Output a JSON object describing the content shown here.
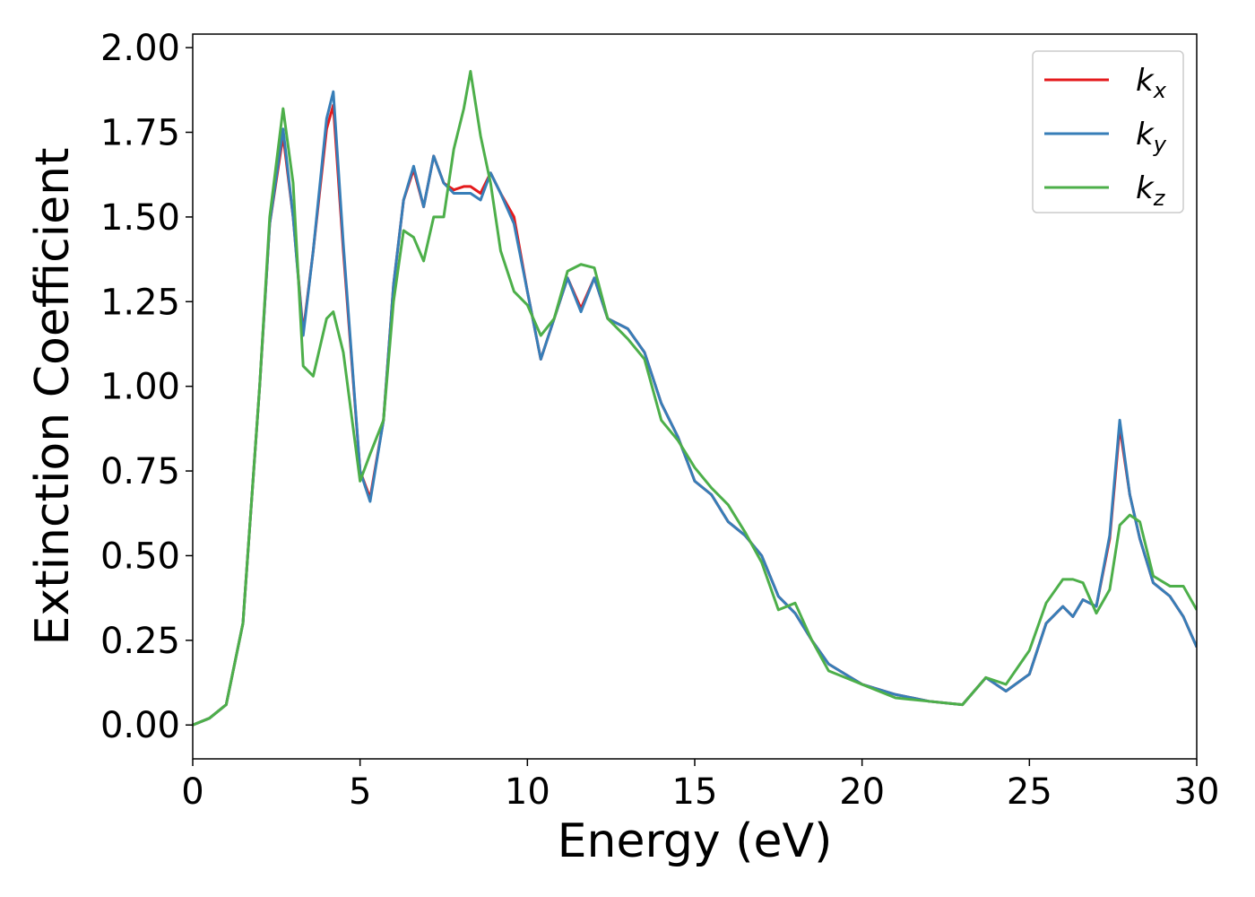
{
  "chart_data": {
    "type": "line",
    "xlabel": "Energy (eV)",
    "ylabel": "Extinction Coefficient",
    "x": [
      0,
      0.5,
      1,
      1.5,
      2,
      2.3,
      2.7,
      3,
      3.3,
      3.6,
      4,
      4.2,
      4.5,
      5,
      5.3,
      5.7,
      6,
      6.3,
      6.6,
      6.9,
      7.2,
      7.5,
      7.8,
      8.1,
      8.3,
      8.6,
      8.9,
      9.2,
      9.6,
      10,
      10.4,
      10.8,
      11.2,
      11.6,
      12,
      12.4,
      13,
      13.5,
      14,
      14.5,
      15,
      15.5,
      16,
      16.5,
      17,
      17.5,
      18,
      18.5,
      19,
      19.5,
      20,
      21,
      22,
      23,
      23.7,
      24.3,
      25,
      25.5,
      26,
      26.3,
      26.6,
      27,
      27.4,
      27.7,
      28,
      28.3,
      28.7,
      29.2,
      29.6,
      30
    ],
    "series": [
      {
        "name": "kx",
        "color": "#e41a1c",
        "values": [
          0,
          0.02,
          0.06,
          0.3,
          1.0,
          1.48,
          1.74,
          1.5,
          1.16,
          1.4,
          1.76,
          1.83,
          1.4,
          0.75,
          0.67,
          0.9,
          1.3,
          1.55,
          1.64,
          1.53,
          1.68,
          1.6,
          1.58,
          1.59,
          1.59,
          1.57,
          1.63,
          1.57,
          1.5,
          1.28,
          1.08,
          1.2,
          1.32,
          1.23,
          1.32,
          1.2,
          1.17,
          1.1,
          0.95,
          0.85,
          0.72,
          0.68,
          0.6,
          0.56,
          0.5,
          0.38,
          0.33,
          0.25,
          0.18,
          0.15,
          0.12,
          0.09,
          0.07,
          0.06,
          0.14,
          0.1,
          0.15,
          0.3,
          0.35,
          0.32,
          0.37,
          0.35,
          0.55,
          0.88,
          0.68,
          0.55,
          0.42,
          0.38,
          0.32,
          0.23
        ]
      },
      {
        "name": "ky",
        "color": "#377eb8",
        "values": [
          0,
          0.02,
          0.06,
          0.3,
          1.0,
          1.48,
          1.76,
          1.5,
          1.15,
          1.4,
          1.79,
          1.87,
          1.42,
          0.75,
          0.66,
          0.9,
          1.3,
          1.55,
          1.65,
          1.53,
          1.68,
          1.6,
          1.57,
          1.57,
          1.57,
          1.55,
          1.63,
          1.57,
          1.48,
          1.28,
          1.08,
          1.2,
          1.32,
          1.22,
          1.32,
          1.2,
          1.17,
          1.1,
          0.95,
          0.85,
          0.72,
          0.68,
          0.6,
          0.56,
          0.5,
          0.38,
          0.33,
          0.25,
          0.18,
          0.15,
          0.12,
          0.09,
          0.07,
          0.06,
          0.14,
          0.1,
          0.15,
          0.3,
          0.35,
          0.32,
          0.37,
          0.35,
          0.56,
          0.9,
          0.68,
          0.55,
          0.42,
          0.38,
          0.32,
          0.23
        ]
      },
      {
        "name": "kz",
        "color": "#4daf4a",
        "values": [
          0,
          0.02,
          0.06,
          0.3,
          1.0,
          1.5,
          1.82,
          1.6,
          1.06,
          1.03,
          1.2,
          1.22,
          1.1,
          0.72,
          0.8,
          0.9,
          1.25,
          1.46,
          1.44,
          1.37,
          1.5,
          1.5,
          1.7,
          1.82,
          1.93,
          1.74,
          1.6,
          1.4,
          1.28,
          1.24,
          1.15,
          1.2,
          1.34,
          1.36,
          1.35,
          1.2,
          1.14,
          1.08,
          0.9,
          0.84,
          0.76,
          0.7,
          0.65,
          0.57,
          0.48,
          0.34,
          0.36,
          0.25,
          0.16,
          0.14,
          0.12,
          0.08,
          0.07,
          0.06,
          0.14,
          0.12,
          0.22,
          0.36,
          0.43,
          0.43,
          0.42,
          0.33,
          0.4,
          0.59,
          0.62,
          0.6,
          0.44,
          0.41,
          0.41,
          0.34
        ]
      }
    ],
    "xlim": [
      0,
      30
    ],
    "ylim": [
      -0.1,
      2.04
    ],
    "xticks": [
      0,
      5,
      10,
      15,
      20,
      25,
      30
    ],
    "yticks": [
      {
        "value": 0,
        "label": "0.00"
      },
      {
        "value": 0.25,
        "label": "0.25"
      },
      {
        "value": 0.5,
        "label": "0.50"
      },
      {
        "value": 0.75,
        "label": "0.75"
      },
      {
        "value": 1,
        "label": "1.00"
      },
      {
        "value": 1.25,
        "label": "1.25"
      },
      {
        "value": 1.5,
        "label": "1.50"
      },
      {
        "value": 1.75,
        "label": "1.75"
      },
      {
        "value": 2,
        "label": "2.00"
      }
    ],
    "legend": "upper right",
    "grid": false
  }
}
